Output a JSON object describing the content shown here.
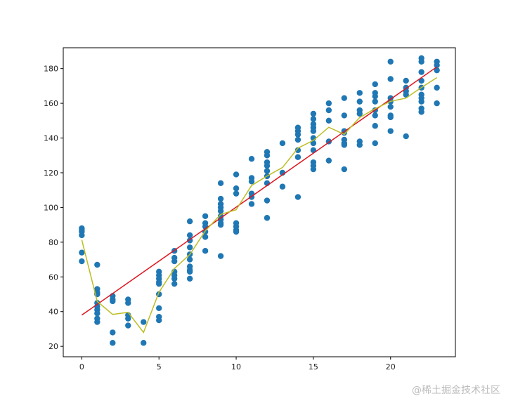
{
  "chart_data": {
    "type": "scatter",
    "title": "",
    "xlabel": "",
    "ylabel": "",
    "xlim": [
      -1.2,
      24.2
    ],
    "ylim": [
      14,
      192
    ],
    "xticks": [
      0,
      5,
      10,
      15,
      20
    ],
    "yticks": [
      20,
      40,
      60,
      80,
      100,
      120,
      140,
      160,
      180
    ],
    "grid": false,
    "points": [
      [
        0,
        [
          88,
          87,
          86,
          84,
          74,
          69
        ]
      ],
      [
        1,
        [
          67,
          53,
          51,
          50,
          45,
          43,
          41,
          39,
          36,
          34
        ]
      ],
      [
        2,
        [
          49,
          47,
          46,
          28,
          22
        ]
      ],
      [
        3,
        [
          47,
          45,
          38,
          36,
          32
        ]
      ],
      [
        4,
        [
          34,
          22
        ]
      ],
      [
        5,
        [
          63,
          61,
          59,
          57,
          56,
          50,
          42,
          37,
          35
        ]
      ],
      [
        6,
        [
          75,
          71,
          69,
          63,
          61,
          59,
          56
        ]
      ],
      [
        7,
        [
          92,
          84,
          81,
          77,
          73,
          70,
          66,
          64,
          63,
          59
        ]
      ],
      [
        8,
        [
          95,
          91,
          89,
          86,
          83,
          75
        ]
      ],
      [
        9,
        [
          114,
          105,
          102,
          100,
          98,
          95,
          93,
          91,
          90,
          72
        ]
      ],
      [
        10,
        [
          119,
          111,
          108,
          91,
          89,
          87,
          86
        ]
      ],
      [
        11,
        [
          128,
          117,
          115,
          108,
          106,
          102
        ]
      ],
      [
        12,
        [
          132,
          130,
          126,
          124,
          121,
          118,
          114,
          104,
          94
        ]
      ],
      [
        13,
        [
          137,
          120,
          112
        ]
      ],
      [
        14,
        [
          146,
          144,
          142,
          139,
          133,
          129,
          106
        ]
      ],
      [
        15,
        [
          154,
          151,
          148,
          146,
          144,
          140,
          137,
          133,
          126,
          124,
          122
        ]
      ],
      [
        16,
        [
          160,
          156,
          150,
          138,
          127
        ]
      ],
      [
        17,
        [
          163,
          153,
          144,
          143,
          139,
          137,
          136,
          122
        ]
      ],
      [
        18,
        [
          166,
          161,
          156,
          154,
          138,
          136
        ]
      ],
      [
        19,
        [
          171,
          166,
          164,
          161,
          156,
          153,
          147,
          137
        ]
      ],
      [
        20,
        [
          184,
          174,
          163,
          161,
          158,
          153,
          152,
          144
        ]
      ],
      [
        21,
        [
          173,
          169,
          167,
          165,
          141
        ]
      ],
      [
        22,
        [
          186,
          184,
          178,
          173,
          169,
          165,
          163,
          161,
          157,
          155
        ]
      ],
      [
        23,
        [
          184,
          182,
          179,
          169,
          160
        ]
      ]
    ],
    "fit_line": {
      "x": [
        0,
        23
      ],
      "y": [
        38,
        181
      ]
    },
    "mean_line": "per-x mean of points",
    "colors": {
      "points": "#1f77b4",
      "fit_line": "#e0141e",
      "mean_line": "#bcbd22"
    }
  },
  "watermark": "@稀土掘金技术社区"
}
